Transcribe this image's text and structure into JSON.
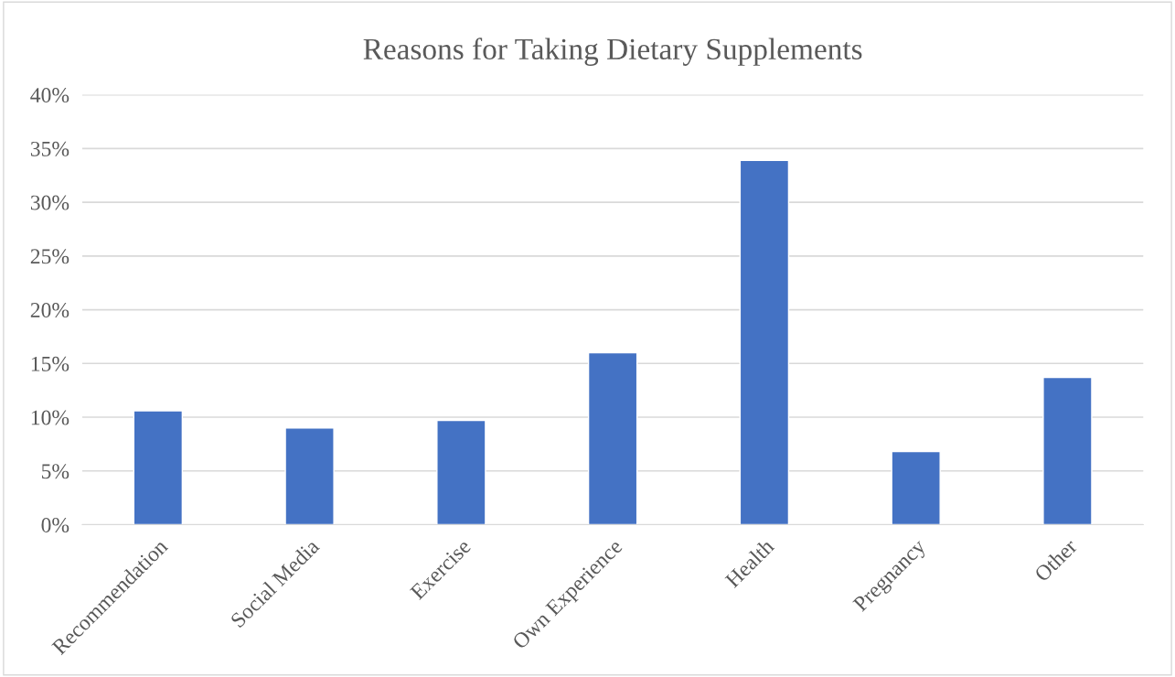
{
  "chart_data": {
    "type": "bar",
    "title": "Reasons for Taking Dietary Supplements",
    "categories": [
      "Recommendation",
      "Social Media",
      "Exercise",
      "Own Experience",
      "Health",
      "Pregnancy",
      "Other"
    ],
    "values": [
      10.6,
      9.0,
      9.7,
      16.0,
      33.9,
      6.8,
      13.7
    ],
    "color": "#4472c4",
    "ylim": [
      0,
      40
    ],
    "yticks": [
      {
        "value": 0,
        "label": "0%"
      },
      {
        "value": 5,
        "label": "5%"
      },
      {
        "value": 10,
        "label": "10%"
      },
      {
        "value": 15,
        "label": "15%"
      },
      {
        "value": 20,
        "label": "20%"
      },
      {
        "value": 25,
        "label": "25%"
      },
      {
        "value": 30,
        "label": "30%"
      },
      {
        "value": 35,
        "label": "35%"
      },
      {
        "value": 40,
        "label": "40%"
      }
    ],
    "grid": "y",
    "legend": false
  }
}
